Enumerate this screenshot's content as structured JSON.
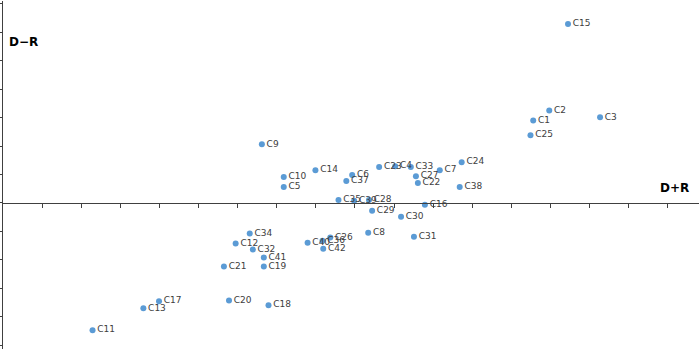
{
  "chart_data": {
    "type": "scatter",
    "x_label": "D+R",
    "y_label": "D−R",
    "color": "#5b9bd5",
    "marker": "circle",
    "tick_labels": false,
    "grid": false,
    "point_labels": [
      "C15",
      "C2",
      "C1",
      "C3",
      "C25",
      "C9",
      "C14",
      "C23",
      "C4",
      "C33",
      "C24",
      "C6",
      "C7",
      "C27",
      "C22",
      "C37",
      "C10",
      "C5",
      "C38",
      "C35",
      "C39",
      "C28",
      "C16",
      "C29",
      "C30",
      "C8",
      "C31",
      "C26",
      "C40",
      "C36",
      "C42",
      "C34",
      "C12",
      "C32",
      "C41",
      "C21",
      "C19",
      "C17",
      "C13",
      "C20",
      "C18",
      "C11"
    ],
    "x": [
      14.45,
      13.97,
      13.56,
      15.27,
      13.49,
      6.62,
      7.99,
      9.62,
      10.03,
      10.43,
      11.73,
      8.93,
      11.17,
      10.56,
      10.61,
      8.78,
      7.18,
      7.18,
      11.68,
      8.58,
      8.98,
      9.36,
      10.79,
      9.44,
      10.18,
      9.34,
      10.51,
      8.37,
      7.79,
      8.17,
      8.19,
      6.31,
      5.95,
      6.39,
      6.67,
      5.65,
      6.67,
      3.99,
      3.59,
      5.78,
      6.79,
      2.29
    ],
    "y": [
      6.29,
      3.25,
      2.9,
      3.01,
      2.38,
      2.06,
      1.15,
      1.26,
      1.29,
      1.26,
      1.43,
      0.98,
      1.15,
      0.94,
      0.7,
      0.77,
      0.91,
      0.56,
      0.56,
      0.1,
      0.07,
      0.1,
      -0.07,
      -0.28,
      -0.49,
      -1.05,
      -1.19,
      -1.22,
      -1.4,
      -1.33,
      -1.61,
      -1.08,
      -1.43,
      -1.64,
      -1.92,
      -2.24,
      -2.24,
      -3.46,
      -3.71,
      -3.43,
      -3.6,
      -4.48
    ],
    "xlim": [
      0,
      17.8
    ],
    "ylim": [
      -5.14,
      7.1
    ],
    "xticks": [
      1,
      2,
      3,
      4,
      5,
      6,
      7,
      8,
      9,
      10,
      11,
      12,
      13,
      14,
      15,
      16,
      17
    ],
    "yticks": [
      -5,
      -4,
      -3,
      -2,
      -1,
      0,
      1,
      2,
      3,
      4,
      5,
      6,
      7
    ]
  }
}
